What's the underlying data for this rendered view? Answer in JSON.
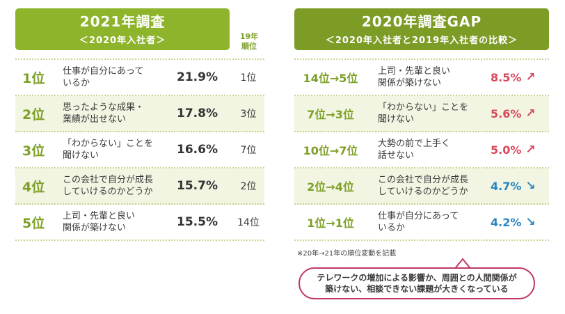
{
  "left": {
    "title": "2021年調査",
    "subtitle": "＜2020年入社者＞",
    "prev_header_line1": "19年",
    "prev_header_line2": "順位",
    "rows": [
      {
        "rank": "1位",
        "desc_line1": "仕事が自分にあって",
        "desc_line2": "いるか",
        "pct": "21.9%",
        "prev": "1位"
      },
      {
        "rank": "2位",
        "desc_line1": "思ったような成果・",
        "desc_line2": "業績が出せない",
        "pct": "17.8%",
        "prev": "3位"
      },
      {
        "rank": "3位",
        "desc_line1": "「わからない」ことを",
        "desc_line2": "聞けない",
        "pct": "16.6%",
        "prev": "7位"
      },
      {
        "rank": "4位",
        "desc_line1": "この会社で自分が成長",
        "desc_line2": "していけるのかどうか",
        "pct": "15.7%",
        "prev": "2位"
      },
      {
        "rank": "5位",
        "desc_line1": "上司・先輩と良い",
        "desc_line2": "関係が築けない",
        "pct": "15.5%",
        "prev": "14位"
      }
    ]
  },
  "right": {
    "title": "2020年調査GAP",
    "subtitle": "＜2020年入社者と2019年入社者の比較＞",
    "rows": [
      {
        "rank": "14位→5位",
        "desc_line1": "上司・先輩と良い",
        "desc_line2": "関係が築けない",
        "gap": "8.5%",
        "arrow": "↗",
        "color": "#d9485a"
      },
      {
        "rank": "7位→3位",
        "desc_line1": "「わからない」ことを",
        "desc_line2": "聞けない",
        "gap": "5.6%",
        "arrow": "↗",
        "color": "#d9485a"
      },
      {
        "rank": "10位→7位",
        "desc_line1": "大勢の前で上手く",
        "desc_line2": "話せない",
        "gap": "5.0%",
        "arrow": "↗",
        "color": "#d9485a"
      },
      {
        "rank": "2位→4位",
        "desc_line1": "この会社で自分が成長",
        "desc_line2": "していけるのかどうか",
        "gap": "4.7%",
        "arrow": "↘",
        "color": "#2a86c2"
      },
      {
        "rank": "1位→1位",
        "desc_line1": "仕事が自分にあって",
        "desc_line2": "いるか",
        "gap": "4.2%",
        "arrow": "↘",
        "color": "#2a86c2"
      }
    ]
  },
  "note": "※20年→21年の順位変動を記載",
  "callout": {
    "line1": "テレワークの増加による影響か、周囲との人間関係が",
    "line2": "築けない、相談できない課題が大きくなっている"
  },
  "colors": {
    "left_header": "#8db42a",
    "right_header": "#7c9c26",
    "up": "#d9485a",
    "down": "#2a86c2",
    "callout_border": "#c0386b"
  }
}
